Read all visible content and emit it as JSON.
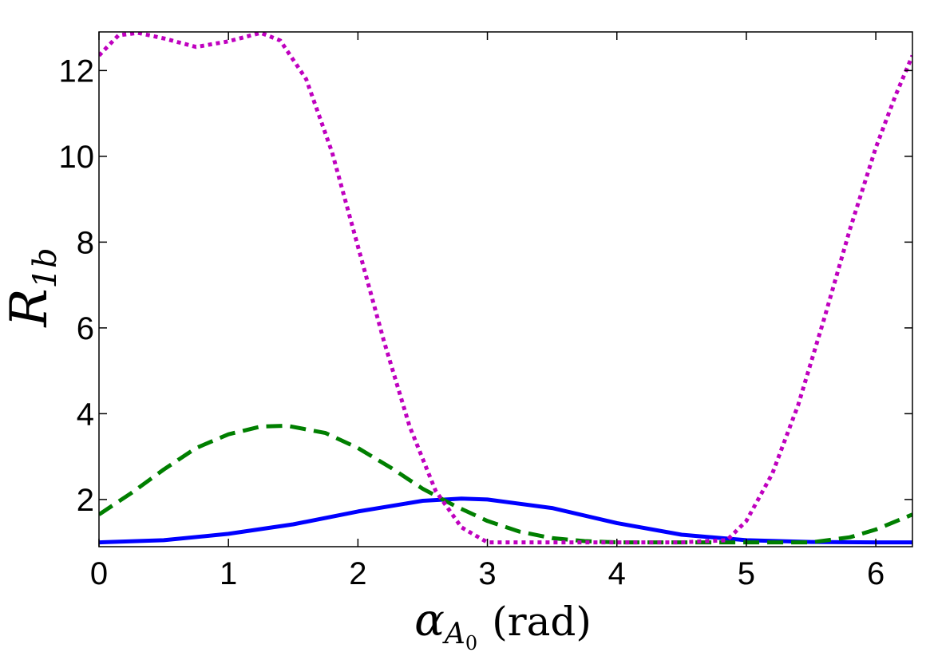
{
  "chart_data": {
    "type": "line",
    "title": "",
    "xlabel": {
      "main": "α",
      "subscript": "A",
      "subsubscript": "0",
      "unit": "(rad)"
    },
    "ylabel": {
      "main": "R",
      "subscript": "1b"
    },
    "xlim": [
      0,
      6.283
    ],
    "ylim": [
      0.9,
      12.9
    ],
    "xticks": [
      0,
      1,
      2,
      3,
      4,
      5,
      6
    ],
    "yticks": [
      2,
      4,
      6,
      8,
      10,
      12
    ],
    "grid": false,
    "legend": "none",
    "series": [
      {
        "color": "#0000ff",
        "style": "solid",
        "x": [
          0,
          0.5,
          1.0,
          1.5,
          2.0,
          2.5,
          2.8,
          3.0,
          3.5,
          4.0,
          4.5,
          5.0,
          5.5,
          6.0,
          6.283
        ],
        "y": [
          1.0,
          1.05,
          1.2,
          1.42,
          1.72,
          1.97,
          2.02,
          2.0,
          1.8,
          1.45,
          1.18,
          1.05,
          1.01,
          1.0,
          1.0
        ]
      },
      {
        "color": "#007f00",
        "style": "dashed",
        "x": [
          0,
          0.25,
          0.5,
          0.75,
          1.0,
          1.25,
          1.45,
          1.75,
          2.0,
          2.25,
          2.5,
          2.75,
          3.0,
          3.25,
          3.5,
          3.75,
          4.0,
          4.5,
          5.0,
          5.5,
          5.8,
          6.0,
          6.283
        ],
        "y": [
          1.65,
          2.15,
          2.7,
          3.2,
          3.52,
          3.7,
          3.72,
          3.55,
          3.2,
          2.75,
          2.25,
          1.85,
          1.5,
          1.25,
          1.1,
          1.03,
          1.0,
          1.0,
          1.0,
          1.0,
          1.12,
          1.3,
          1.65
        ]
      },
      {
        "color": "#bf00bf",
        "style": "dotted",
        "x": [
          0,
          0.15,
          0.3,
          0.5,
          0.75,
          1.0,
          1.25,
          1.4,
          1.6,
          1.8,
          2.0,
          2.2,
          2.4,
          2.6,
          2.8,
          3.0,
          3.5,
          4.0,
          4.5,
          4.85,
          5.0,
          5.2,
          5.4,
          5.6,
          5.8,
          6.0,
          6.15,
          6.283
        ],
        "y": [
          12.35,
          12.82,
          12.88,
          12.75,
          12.55,
          12.68,
          12.88,
          12.7,
          11.8,
          10.1,
          7.9,
          5.7,
          3.7,
          2.2,
          1.35,
          1.0,
          1.0,
          1.0,
          1.0,
          1.05,
          1.5,
          2.6,
          4.2,
          6.2,
          8.3,
          10.2,
          11.4,
          12.35
        ]
      }
    ]
  }
}
